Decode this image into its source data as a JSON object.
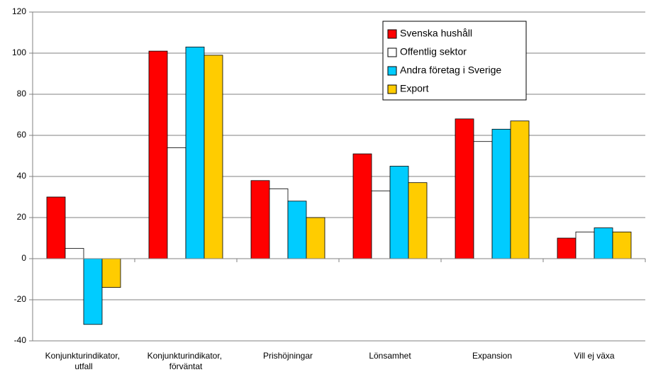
{
  "chart_data": {
    "type": "bar",
    "categories": [
      "Konjunkturindikator, utfall",
      "Konjunkturindikator, förväntat",
      "Prishöjningar",
      "Lönsamhet",
      "Expansion",
      "Vill ej växa"
    ],
    "series": [
      {
        "name": "Svenska hushåll",
        "color": "#ff0000",
        "values": [
          30,
          101,
          38,
          51,
          68,
          10
        ]
      },
      {
        "name": "Offentlig sektor",
        "color": "#ffffff",
        "values": [
          5,
          54,
          34,
          33,
          57,
          13
        ]
      },
      {
        "name": "Andra företag i Sverige",
        "color": "#00ccff",
        "values": [
          -32,
          103,
          28,
          45,
          63,
          15
        ]
      },
      {
        "name": "Export",
        "color": "#ffcc00",
        "values": [
          -14,
          99,
          20,
          37,
          67,
          13
        ]
      }
    ],
    "ylim": [
      -40,
      120
    ],
    "yticks": [
      -40,
      -20,
      0,
      20,
      40,
      60,
      80,
      100,
      120
    ],
    "grid": true
  }
}
